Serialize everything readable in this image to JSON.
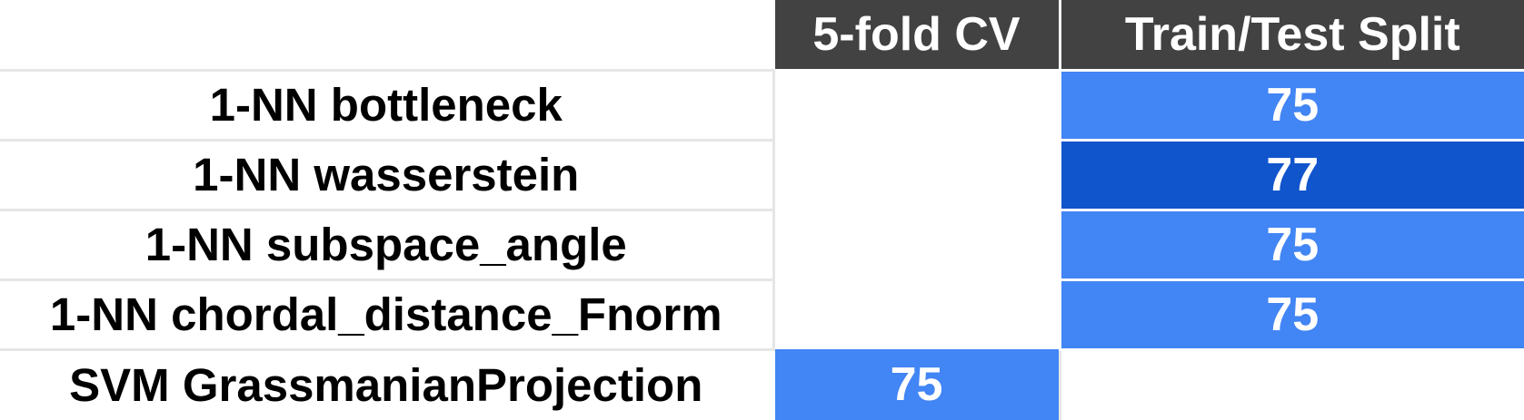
{
  "colors": {
    "header_bg": "#424242",
    "cell_mid": "#4285f4",
    "cell_high": "#1155cc",
    "text_on_color": "#ffffff",
    "grid": "#e6e6e6"
  },
  "chart_data": {
    "type": "table",
    "columns": [
      "5-fold CV",
      "Train/Test Split"
    ],
    "rows": [
      {
        "label": "1-NN bottleneck",
        "cells": [
          null,
          75
        ]
      },
      {
        "label": "1-NN wasserstein",
        "cells": [
          null,
          77
        ]
      },
      {
        "label": "1-NN subspace_angle",
        "cells": [
          null,
          75
        ]
      },
      {
        "label": "1-NN chordal_distance_Fnorm",
        "cells": [
          null,
          75
        ]
      },
      {
        "label": "SVM GrassmanianProjection",
        "cells": [
          75,
          null
        ]
      }
    ]
  }
}
